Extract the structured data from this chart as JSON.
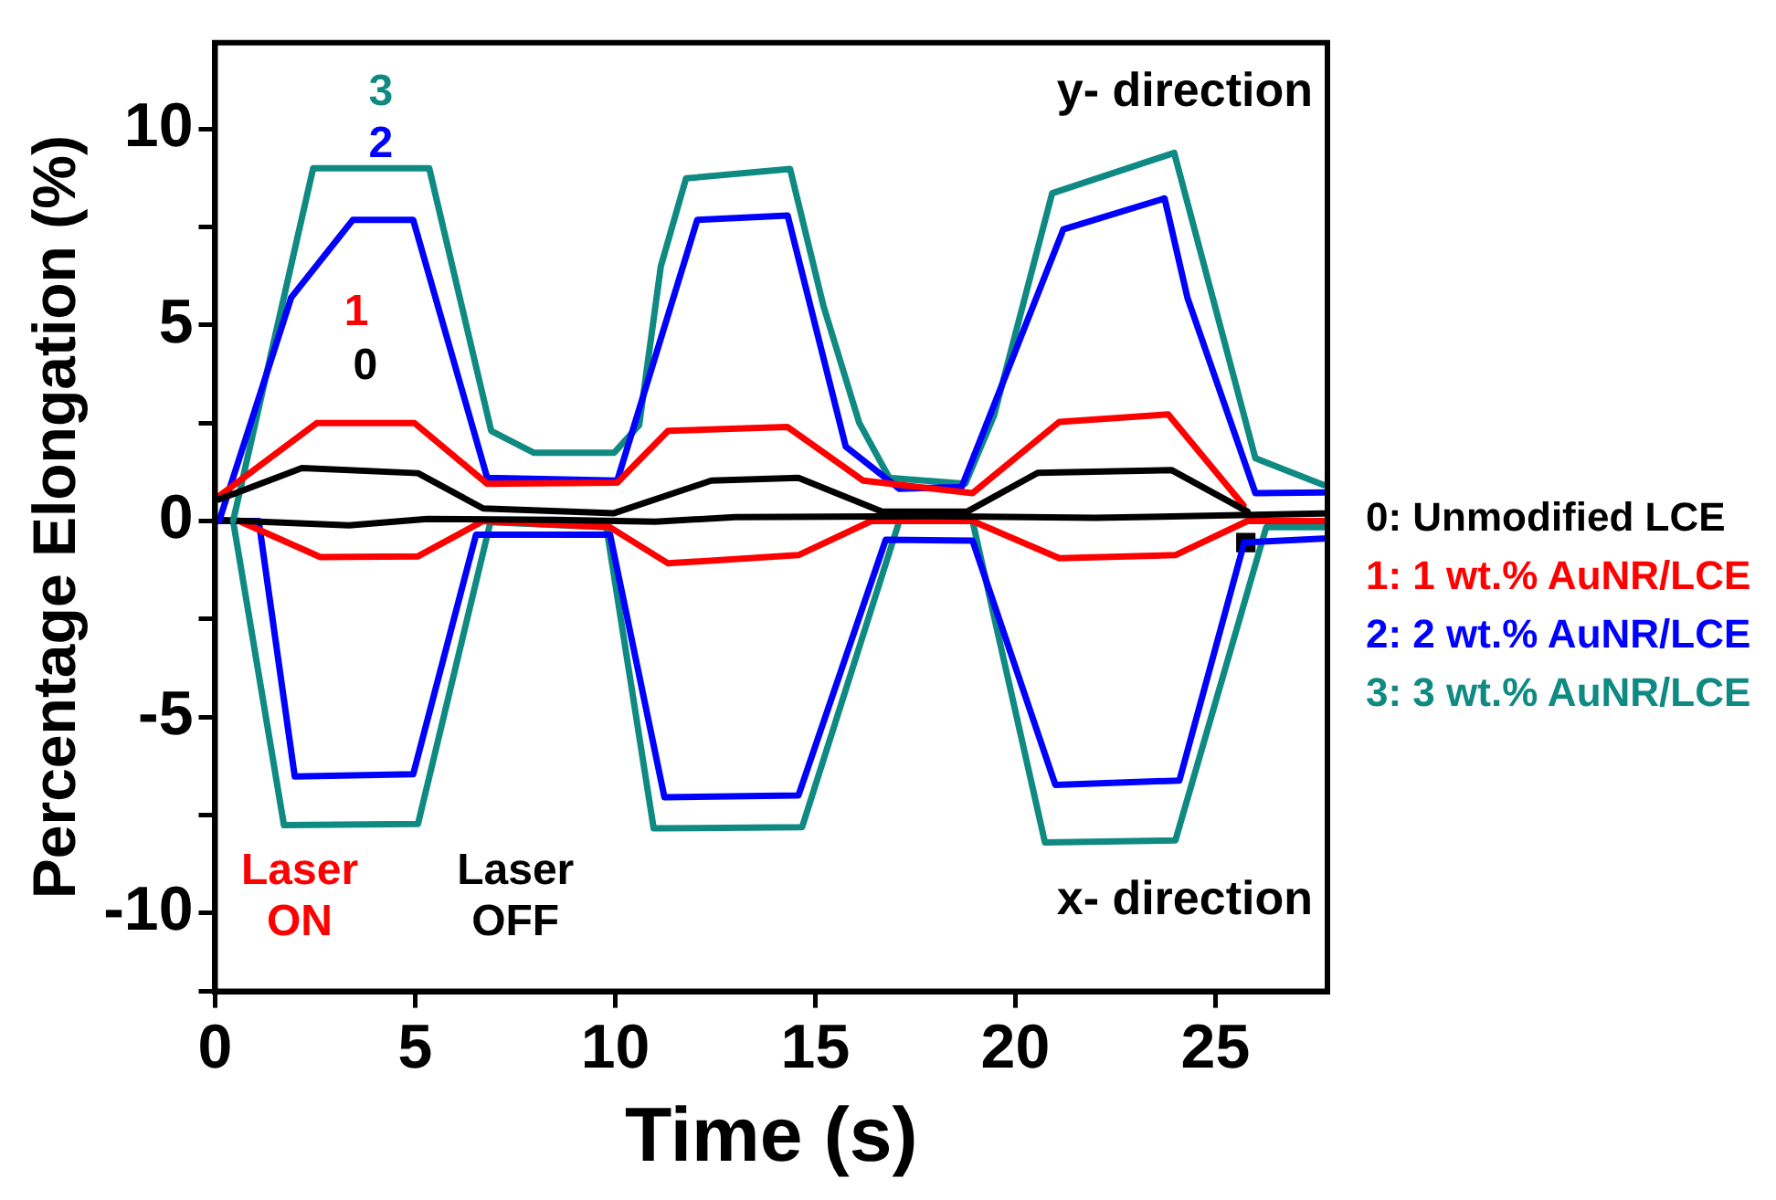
{
  "chart_data": {
    "type": "line",
    "xlabel": "Time (s)",
    "ylabel": "Percentage Elongation (%)",
    "xlim": [
      0,
      27.8
    ],
    "xticks": [
      0,
      5,
      10,
      15,
      20,
      25
    ],
    "ylim": [
      -12,
      12.2
    ],
    "yticks": [
      {
        "value": -12,
        "label": null
      },
      -10,
      {
        "value": -7.5,
        "label": null
      },
      -5,
      {
        "value": -2.5,
        "label": null
      },
      0,
      {
        "value": 2.5,
        "label": null
      },
      5,
      {
        "value": 7.5,
        "label": null
      },
      10
    ],
    "grid": false,
    "legend": "right",
    "marker": "none",
    "line_style": "solid",
    "series": [
      {
        "name": "0: Unmodified LCE",
        "color": "#000000",
        "x": [
          0.09,
          2.17,
          5.07,
          6.7,
          9.97,
          12.4,
          14.58,
          16.67,
          18.8,
          20.56,
          23.9,
          25.8
        ],
        "values": [
          0.55,
          1.35,
          1.22,
          0.32,
          0.2,
          1.03,
          1.1,
          0.24,
          0.24,
          1.23,
          1.3,
          0.24
        ]
      },
      {
        "name": "1: 1 wt.% AuNR/LCE",
        "color": "#ff0000",
        "x": [
          0.09,
          2.54,
          4.98,
          6.8,
          10.05,
          11.32,
          14.3,
          16.2,
          18.93,
          21.1,
          23.82,
          25.7
        ],
        "values": [
          0.63,
          2.5,
          2.5,
          0.95,
          0.98,
          2.3,
          2.4,
          1.03,
          0.71,
          2.53,
          2.72,
          0.4
        ]
      },
      {
        "name": "2: 2 wt.% AuNR/LCE",
        "color": "#0000ff",
        "x": [
          0.1,
          1.9,
          3.44,
          4.95,
          6.8,
          10.05,
          12.05,
          14.31,
          15.76,
          17.1,
          18.66,
          21.2,
          23.73,
          24.3,
          26.0,
          27.7
        ],
        "values": [
          0,
          5.7,
          7.68,
          7.68,
          1.1,
          1.03,
          7.68,
          7.79,
          1.9,
          0.82,
          0.87,
          7.44,
          8.23,
          5.7,
          0.71,
          0.73
        ]
      },
      {
        "name": "3: 3 wt.% AuNR/LCE",
        "color": "#0f8a82",
        "x": [
          0.45,
          2.45,
          5.35,
          6.9,
          7.97,
          9.97,
          10.6,
          11.14,
          11.77,
          14.37,
          15.2,
          16.1,
          16.85,
          18.75,
          19.47,
          20.92,
          23.97,
          26.0,
          27.7
        ],
        "values": [
          0,
          9.0,
          9.0,
          2.3,
          1.74,
          1.74,
          2.45,
          6.5,
          8.74,
          8.98,
          5.5,
          2.5,
          1.1,
          0.95,
          2.7,
          8.36,
          9.39,
          1.6,
          0.92
        ]
      },
      {
        "color": "#000000",
        "x": [
          0,
          3.35,
          5.3,
          8.5,
          11,
          13,
          18,
          22,
          27.7
        ],
        "values": [
          0.03,
          -0.11,
          0.05,
          0.03,
          -0.02,
          0.1,
          0.12,
          0.08,
          0.19
        ]
      },
      {
        "color": "#ff0000",
        "x": [
          0.6,
          2.63,
          5.07,
          6.7,
          9.87,
          11.32,
          14.58,
          16.4,
          18.93,
          21.1,
          24.0,
          25.8,
          27.7
        ],
        "values": [
          0,
          -0.92,
          -0.9,
          0,
          -0.16,
          -1.08,
          -0.87,
          0,
          0,
          -0.95,
          -0.87,
          0,
          0
        ]
      },
      {
        "color": "#0000ff",
        "x": [
          0.09,
          1.09,
          1.99,
          4.95,
          6.52,
          9.87,
          11.23,
          14.58,
          16.76,
          18.93,
          21.0,
          24.1,
          25.72,
          27.7
        ],
        "values": [
          0,
          0,
          -6.52,
          -6.46,
          -0.35,
          -0.35,
          -7.05,
          -7.0,
          -0.48,
          -0.5,
          -6.73,
          -6.62,
          -0.55,
          -0.45
        ]
      },
      {
        "color": "#0f8a82",
        "x": [
          0.09,
          0.45,
          1.72,
          5.07,
          6.88,
          9.78,
          10.96,
          14.67,
          17.1,
          18.93,
          20.74,
          24.0,
          26.27,
          27.7
        ],
        "values": [
          0,
          0,
          -7.76,
          -7.73,
          -0.03,
          -0.16,
          -7.84,
          -7.81,
          0,
          0,
          -8.2,
          -8.15,
          -0.16,
          -0.16
        ]
      },
      {
        "type": "scatter",
        "marker": "square",
        "color": "#000000",
        "x": [
          25.76
        ],
        "values": [
          -0.55
        ]
      }
    ],
    "annotations": [
      "y- direction",
      "x- direction",
      "Laser ON",
      "Laser OFF",
      "3",
      "2",
      "1",
      "0"
    ]
  }
}
